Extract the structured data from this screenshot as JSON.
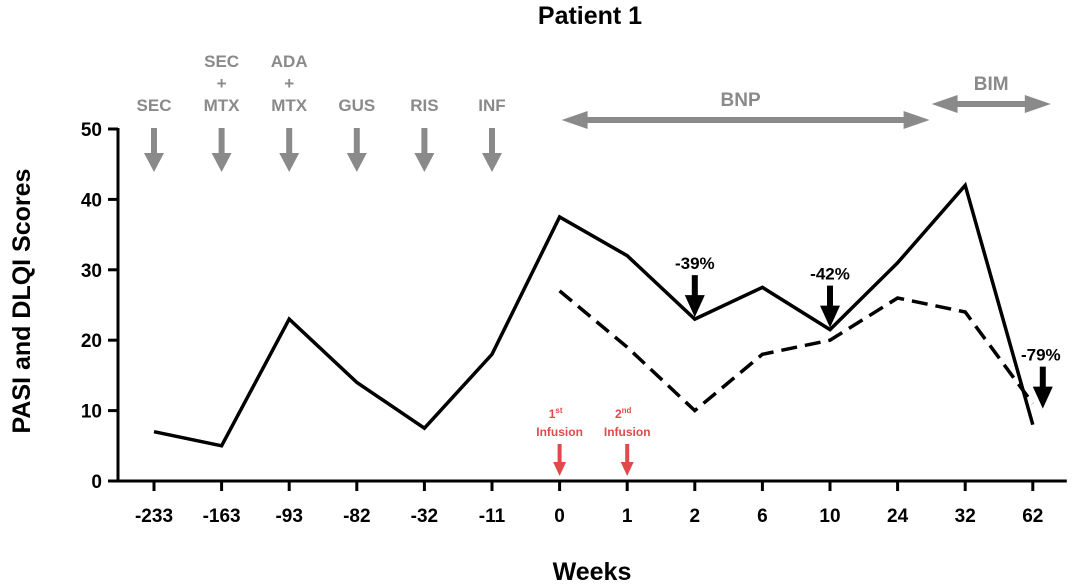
{
  "chart_data": {
    "type": "line",
    "title": "Patient 1",
    "xlabel": "Weeks",
    "ylabel": "PASI and DLQI Scores",
    "ylim": [
      0,
      50
    ],
    "yticks": [
      "0",
      "10",
      "20",
      "30",
      "40",
      "50"
    ],
    "categories": [
      "-233",
      "-163",
      "-93",
      "-82",
      "-32",
      "-11",
      "0",
      "1",
      "2",
      "6",
      "10",
      "24",
      "32",
      "62"
    ],
    "series": [
      {
        "name": "PASI",
        "style": "solid",
        "color": "#000000",
        "values": [
          7,
          5,
          23,
          14,
          7.5,
          18,
          37.5,
          32,
          23,
          27.5,
          21.5,
          31,
          42,
          8
        ]
      },
      {
        "name": "DLQI",
        "style": "dashed",
        "color": "#000000",
        "values": [
          null,
          null,
          null,
          null,
          null,
          null,
          27,
          19,
          10,
          18,
          20,
          26,
          24,
          11
        ]
      }
    ],
    "treatments": [
      {
        "lines": [
          "SEC"
        ],
        "category": "-233"
      },
      {
        "lines": [
          "SEC",
          "+",
          "MTX"
        ],
        "category": "-163"
      },
      {
        "lines": [
          "ADA",
          "+",
          "MTX"
        ],
        "category": "-93"
      },
      {
        "lines": [
          "GUS"
        ],
        "category": "-82"
      },
      {
        "lines": [
          "RIS"
        ],
        "category": "-32"
      },
      {
        "lines": [
          "INF"
        ],
        "category": "-11"
      }
    ],
    "periods": [
      {
        "label": "BNP",
        "from": "0",
        "to": "24"
      },
      {
        "label": "BIM",
        "from": "24",
        "to": "62"
      }
    ],
    "annotations": [
      {
        "text": "-39%",
        "category": "2",
        "y": 23
      },
      {
        "text": "-42%",
        "category": "10",
        "y": 21.5
      },
      {
        "text": "-79%",
        "category": "62",
        "y": 10
      }
    ],
    "infusions": [
      {
        "ordinal": "1",
        "suffix": "st",
        "label": "Infusion",
        "category": "0"
      },
      {
        "ordinal": "2",
        "suffix": "nd",
        "label": "Infusion",
        "category": "1"
      }
    ],
    "colors": {
      "treatment": "#8a8a8a",
      "infusion": "#e04a4a",
      "line": "#000000"
    }
  }
}
